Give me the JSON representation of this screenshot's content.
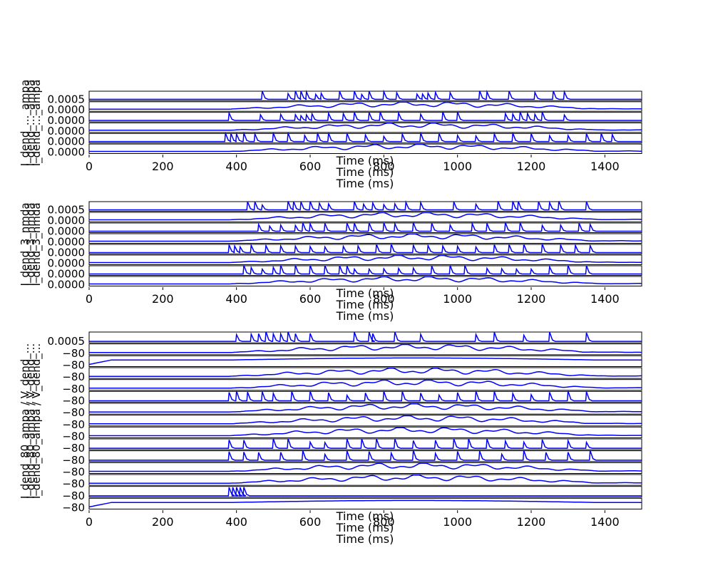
{
  "colors": {
    "trace": "#0000ff",
    "axis": "#000000",
    "background": "#ffffff"
  },
  "chart_data": [
    {
      "type": "line",
      "xlabel": "Time (ms)",
      "xlim": [
        0,
        1500
      ],
      "xticks": [
        "0",
        "200",
        "400",
        "600",
        "800",
        "1000",
        "1200",
        "1400"
      ],
      "ylabels_overlapping": "I_dend_..._ampa",
      "top_ytick_label": "0.0005",
      "bottom_ytick_label": "0.0000",
      "panel_count": 6,
      "traces": [
        {
          "kind": "spiky",
          "spikes": [
            470,
            540,
            560,
            575,
            590,
            615,
            630,
            680,
            720,
            740,
            760,
            800,
            835,
            890,
            905,
            920,
            940,
            980,
            1060,
            1080,
            1140,
            1210,
            1260,
            1290
          ]
        },
        {
          "kind": "smooth",
          "onset": 380
        },
        {
          "kind": "spiky",
          "spikes": [
            380,
            465,
            520,
            560,
            575,
            590,
            605,
            650,
            690,
            720,
            760,
            790,
            840,
            900,
            960,
            1000,
            1130,
            1150,
            1170,
            1190,
            1210,
            1230,
            1290
          ]
        },
        {
          "kind": "smooth",
          "onset": 380
        },
        {
          "kind": "spiky",
          "spikes": [
            370,
            385,
            400,
            420,
            450,
            500,
            540,
            585,
            620,
            650,
            700,
            750,
            800,
            850,
            900,
            950,
            1000,
            1050,
            1100,
            1150,
            1200,
            1250,
            1300,
            1350,
            1390,
            1420
          ]
        },
        {
          "kind": "smooth",
          "onset": 380
        }
      ]
    },
    {
      "type": "line",
      "xlabel": "Time (ms)",
      "xlim": [
        0,
        1500
      ],
      "xticks": [
        "0",
        "200",
        "400",
        "600",
        "800",
        "1000",
        "1200",
        "1400"
      ],
      "ylabels_overlapping": "I_dend_3_nmda",
      "top_ytick_label": "0.0005",
      "bottom_ytick_label": "0.0000",
      "panel_count": 8,
      "traces": [
        {
          "kind": "spiky",
          "spikes": [
            430,
            450,
            470,
            540,
            555,
            575,
            600,
            625,
            650,
            720,
            745,
            770,
            800,
            830,
            860,
            900,
            990,
            1050,
            1110,
            1150,
            1165,
            1220,
            1250,
            1275,
            1350
          ]
        },
        {
          "kind": "smooth",
          "onset": 380
        },
        {
          "kind": "spiky",
          "spikes": [
            460,
            490,
            520,
            560,
            580,
            600,
            640,
            700,
            720,
            760,
            800,
            830,
            880,
            930,
            980,
            1040,
            1080,
            1130,
            1170,
            1230,
            1280,
            1330,
            1360
          ]
        },
        {
          "kind": "smooth",
          "onset": 380
        },
        {
          "kind": "spiky",
          "spikes": [
            380,
            395,
            410,
            440,
            480,
            520,
            560,
            600,
            640,
            690,
            730,
            780,
            820,
            880,
            920,
            960,
            1000,
            1050,
            1100,
            1140,
            1180,
            1230,
            1280,
            1320,
            1360
          ]
        },
        {
          "kind": "smooth",
          "onset": 380
        },
        {
          "kind": "spiky",
          "spikes": [
            420,
            440,
            470,
            500,
            520,
            560,
            600,
            640,
            680,
            700,
            720,
            760,
            800,
            840,
            880,
            930,
            980,
            1020,
            1080,
            1120,
            1160,
            1200,
            1250,
            1300,
            1350
          ]
        },
        {
          "kind": "smooth",
          "onset": 380
        }
      ]
    },
    {
      "type": "line",
      "xlabel": "Time (ms)",
      "xlim": [
        0,
        1500
      ],
      "xticks": [
        "0",
        "200",
        "400",
        "600",
        "800",
        "1000",
        "1200",
        "1400"
      ],
      "ylabels_overlapping": "I_dend_80_ampa / V_dend_...",
      "top_ytick_label": "0.0005",
      "bottom_ytick_label": "−80",
      "panel_count": 15,
      "traces": [
        {
          "kind": "spiky",
          "spikes": [
            400,
            440,
            460,
            480,
            500,
            520,
            540,
            560,
            600,
            720,
            760,
            770,
            830,
            900,
            1050,
            1100,
            1180,
            1250,
            1350
          ]
        },
        {
          "kind": "smooth",
          "onset": 380
        },
        {
          "kind": "smooth",
          "onset": 0
        },
        {
          "kind": "smooth",
          "onset": 380
        },
        {
          "kind": "smooth",
          "onset": 380
        },
        {
          "kind": "spiky",
          "spikes": [
            380,
            400,
            430,
            470,
            500,
            550,
            600,
            650,
            700,
            750,
            800,
            850,
            900,
            950,
            1000,
            1050,
            1100,
            1150,
            1200,
            1250,
            1300,
            1350
          ]
        },
        {
          "kind": "smooth",
          "onset": 380
        },
        {
          "kind": "smooth",
          "onset": 380
        },
        {
          "kind": "smooth",
          "onset": 380
        },
        {
          "kind": "spiky",
          "spikes": [
            380,
            420,
            500,
            540,
            600,
            640,
            700,
            740,
            780,
            830,
            880,
            940,
            990,
            1030,
            1080,
            1130,
            1180,
            1230,
            1300,
            1350
          ]
        },
        {
          "kind": "spiky",
          "spikes": [
            380,
            420,
            460,
            520,
            580,
            640,
            700,
            760,
            820,
            880,
            940,
            1000,
            1060,
            1120,
            1180,
            1240,
            1300,
            1360
          ]
        },
        {
          "kind": "smooth",
          "onset": 380
        },
        {
          "kind": "smooth",
          "onset": 380
        },
        {
          "kind": "spiky",
          "spikes": [
            380,
            390,
            400,
            410,
            420
          ]
        },
        {
          "kind": "smooth",
          "onset": 0
        }
      ]
    }
  ]
}
